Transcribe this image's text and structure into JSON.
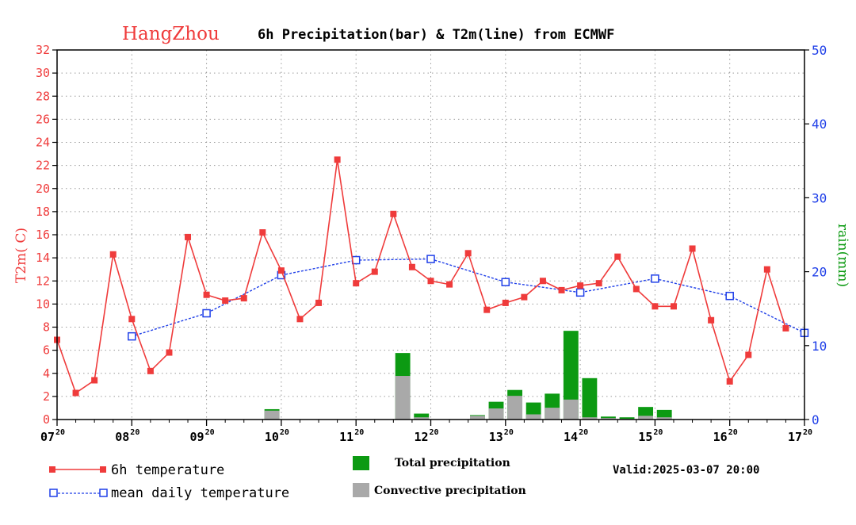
{
  "colors": {
    "temperature": "#ef3b3b",
    "mean_temperature": "#1f3fe8",
    "total_precip": "#0c9a12",
    "convective_precip": "#a9a9a9",
    "rain_axis": "#0c9a12"
  },
  "chart_data": {
    "type": "bar+line",
    "title_city": "HangZhou",
    "title_rest": "6h Precipitation(bar) & T2m(line) from ECMWF",
    "ylabel_left": "T2m( C)",
    "ylabel_right": "rain(mm)",
    "ylim_left": [
      0,
      32
    ],
    "ylim_right": [
      0,
      50
    ],
    "xlim_steps": [
      0,
      40
    ],
    "x_ticks": [
      {
        "day": "07",
        "hour": "20"
      },
      {
        "day": "08",
        "hour": "20"
      },
      {
        "day": "09",
        "hour": "20"
      },
      {
        "day": "10",
        "hour": "20"
      },
      {
        "day": "11",
        "hour": "20"
      },
      {
        "day": "12",
        "hour": "20"
      },
      {
        "day": "13",
        "hour": "20"
      },
      {
        "day": "14",
        "hour": "20"
      },
      {
        "day": "15",
        "hour": "20"
      },
      {
        "day": "16",
        "hour": "20"
      },
      {
        "day": "17",
        "hour": "20"
      }
    ],
    "y_ticks_left": [
      0,
      2,
      4,
      6,
      8,
      10,
      12,
      14,
      16,
      18,
      20,
      22,
      24,
      26,
      28,
      30,
      32
    ],
    "y_ticks_right": [
      0,
      10,
      20,
      30,
      40,
      50
    ],
    "temperature_6h": [
      6.9,
      2.3,
      3.4,
      14.3,
      8.7,
      4.2,
      5.8,
      15.8,
      10.8,
      10.3,
      10.5,
      16.2,
      12.9,
      8.7,
      10.1,
      22.5,
      11.8,
      12.8,
      17.8,
      13.2,
      12.0,
      11.7,
      14.4,
      9.5,
      10.1,
      10.6,
      12.0,
      11.2,
      11.6,
      11.8,
      14.1,
      11.3,
      9.8,
      9.8,
      14.8,
      8.6,
      3.3,
      5.6,
      13.0,
      7.9
    ],
    "mean_daily_temperature": [
      {
        "step": 4,
        "value": 7.2
      },
      {
        "step": 8,
        "value": 9.2
      },
      {
        "step": 12,
        "value": 12.5
      },
      {
        "step": 16,
        "value": 13.8
      },
      {
        "step": 20,
        "value": 13.9
      },
      {
        "step": 24,
        "value": 11.9
      },
      {
        "step": 28,
        "value": 11.0
      },
      {
        "step": 32,
        "value": 12.2
      },
      {
        "step": 36,
        "value": 10.7
      },
      {
        "step": 40,
        "value": 7.5
      }
    ],
    "precipitation": [
      {
        "step": 12,
        "total": 1.4,
        "convective": 1.2
      },
      {
        "step": 19,
        "total": 9.0,
        "convective": 5.9
      },
      {
        "step": 20,
        "total": 0.8,
        "convective": 0.3
      },
      {
        "step": 23,
        "total": 0.6,
        "convective": 0.5
      },
      {
        "step": 24,
        "total": 2.4,
        "convective": 1.5
      },
      {
        "step": 25,
        "total": 4.0,
        "convective": 3.2
      },
      {
        "step": 26,
        "total": 2.3,
        "convective": 0.7
      },
      {
        "step": 27,
        "total": 3.5,
        "convective": 1.6
      },
      {
        "step": 28,
        "total": 12.0,
        "convective": 2.7
      },
      {
        "step": 29,
        "total": 5.6,
        "convective": 0.3
      },
      {
        "step": 30,
        "total": 0.4,
        "convective": 0.2
      },
      {
        "step": 31,
        "total": 0.3,
        "convective": 0.1
      },
      {
        "step": 32,
        "total": 1.7,
        "convective": 0.5
      },
      {
        "step": 33,
        "total": 1.3,
        "convective": 0.3
      }
    ]
  },
  "legend": {
    "temperature_label": "6h temperature",
    "mean_label": "mean daily temperature",
    "total_label": "Total precipitation",
    "convective_label": "Convective precipitation",
    "valid_label": "Valid:2025-03-07 20:00"
  }
}
